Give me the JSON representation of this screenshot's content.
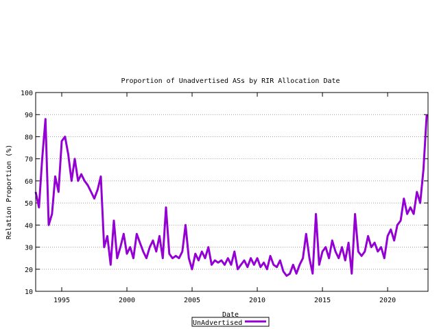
{
  "chart_data": {
    "type": "line",
    "title": "Proportion of Unadvertised ASs by RIR Allocation Date",
    "xlabel": "Date",
    "ylabel": "Relation Proportion (%)",
    "xlim": [
      1993,
      2023.1
    ],
    "ylim": [
      10,
      100
    ],
    "xticks": [
      1995,
      2000,
      2005,
      2010,
      2015,
      2020
    ],
    "yticks": [
      10,
      20,
      30,
      40,
      50,
      60,
      70,
      80,
      90,
      100
    ],
    "grid": "horizontal dotted",
    "legend_placement": "bottom-center",
    "series": [
      {
        "name": "UnAdvertised",
        "color": "#9400d3",
        "x": [
          1993.0,
          1993.25,
          1993.5,
          1993.75,
          1994.0,
          1994.25,
          1994.5,
          1994.75,
          1995.0,
          1995.25,
          1995.5,
          1995.75,
          1996.0,
          1996.25,
          1996.5,
          1996.75,
          1997.0,
          1997.25,
          1997.5,
          1997.75,
          1998.0,
          1998.25,
          1998.5,
          1998.75,
          1999.0,
          1999.25,
          1999.5,
          1999.75,
          2000.0,
          2000.25,
          2000.5,
          2000.75,
          2001.0,
          2001.25,
          2001.5,
          2001.75,
          2002.0,
          2002.25,
          2002.5,
          2002.75,
          2003.0,
          2003.25,
          2003.5,
          2003.75,
          2004.0,
          2004.25,
          2004.5,
          2004.75,
          2005.0,
          2005.25,
          2005.5,
          2005.75,
          2006.0,
          2006.25,
          2006.5,
          2006.75,
          2007.0,
          2007.25,
          2007.5,
          2007.75,
          2008.0,
          2008.25,
          2008.5,
          2008.75,
          2009.0,
          2009.25,
          2009.5,
          2009.75,
          2010.0,
          2010.25,
          2010.5,
          2010.75,
          2011.0,
          2011.25,
          2011.5,
          2011.75,
          2012.0,
          2012.25,
          2012.5,
          2012.75,
          2013.0,
          2013.25,
          2013.5,
          2013.75,
          2014.0,
          2014.25,
          2014.5,
          2014.75,
          2015.0,
          2015.25,
          2015.5,
          2015.75,
          2016.0,
          2016.25,
          2016.5,
          2016.75,
          2017.0,
          2017.25,
          2017.5,
          2017.75,
          2018.0,
          2018.25,
          2018.5,
          2018.75,
          2019.0,
          2019.25,
          2019.5,
          2019.75,
          2020.0,
          2020.25,
          2020.5,
          2020.75,
          2021.0,
          2021.25,
          2021.5,
          2021.75,
          2022.0,
          2022.25,
          2022.5,
          2022.75,
          2023.0
        ],
        "y": [
          55,
          48,
          70,
          88,
          40,
          45,
          62,
          55,
          78,
          80,
          72,
          60,
          70,
          60,
          63,
          60,
          58,
          55,
          52,
          56,
          62,
          30,
          35,
          22,
          42,
          25,
          30,
          36,
          27,
          30,
          25,
          36,
          32,
          28,
          25,
          30,
          33,
          28,
          35,
          25,
          48,
          27,
          25,
          26,
          25,
          28,
          40,
          25,
          20,
          27,
          24,
          28,
          25,
          30,
          22,
          24,
          23,
          24,
          22,
          25,
          22,
          28,
          20,
          22,
          24,
          21,
          25,
          22,
          25,
          21,
          23,
          20,
          26,
          22,
          21,
          24,
          19,
          17,
          18,
          22,
          18,
          22,
          25,
          36,
          25,
          18,
          45,
          22,
          28,
          30,
          25,
          33,
          28,
          25,
          30,
          24,
          32,
          18,
          45,
          28,
          26,
          28,
          35,
          30,
          32,
          28,
          30,
          25,
          35,
          38,
          33,
          40,
          42,
          52,
          45,
          48,
          45,
          55,
          50,
          65,
          90
        ]
      }
    ]
  }
}
